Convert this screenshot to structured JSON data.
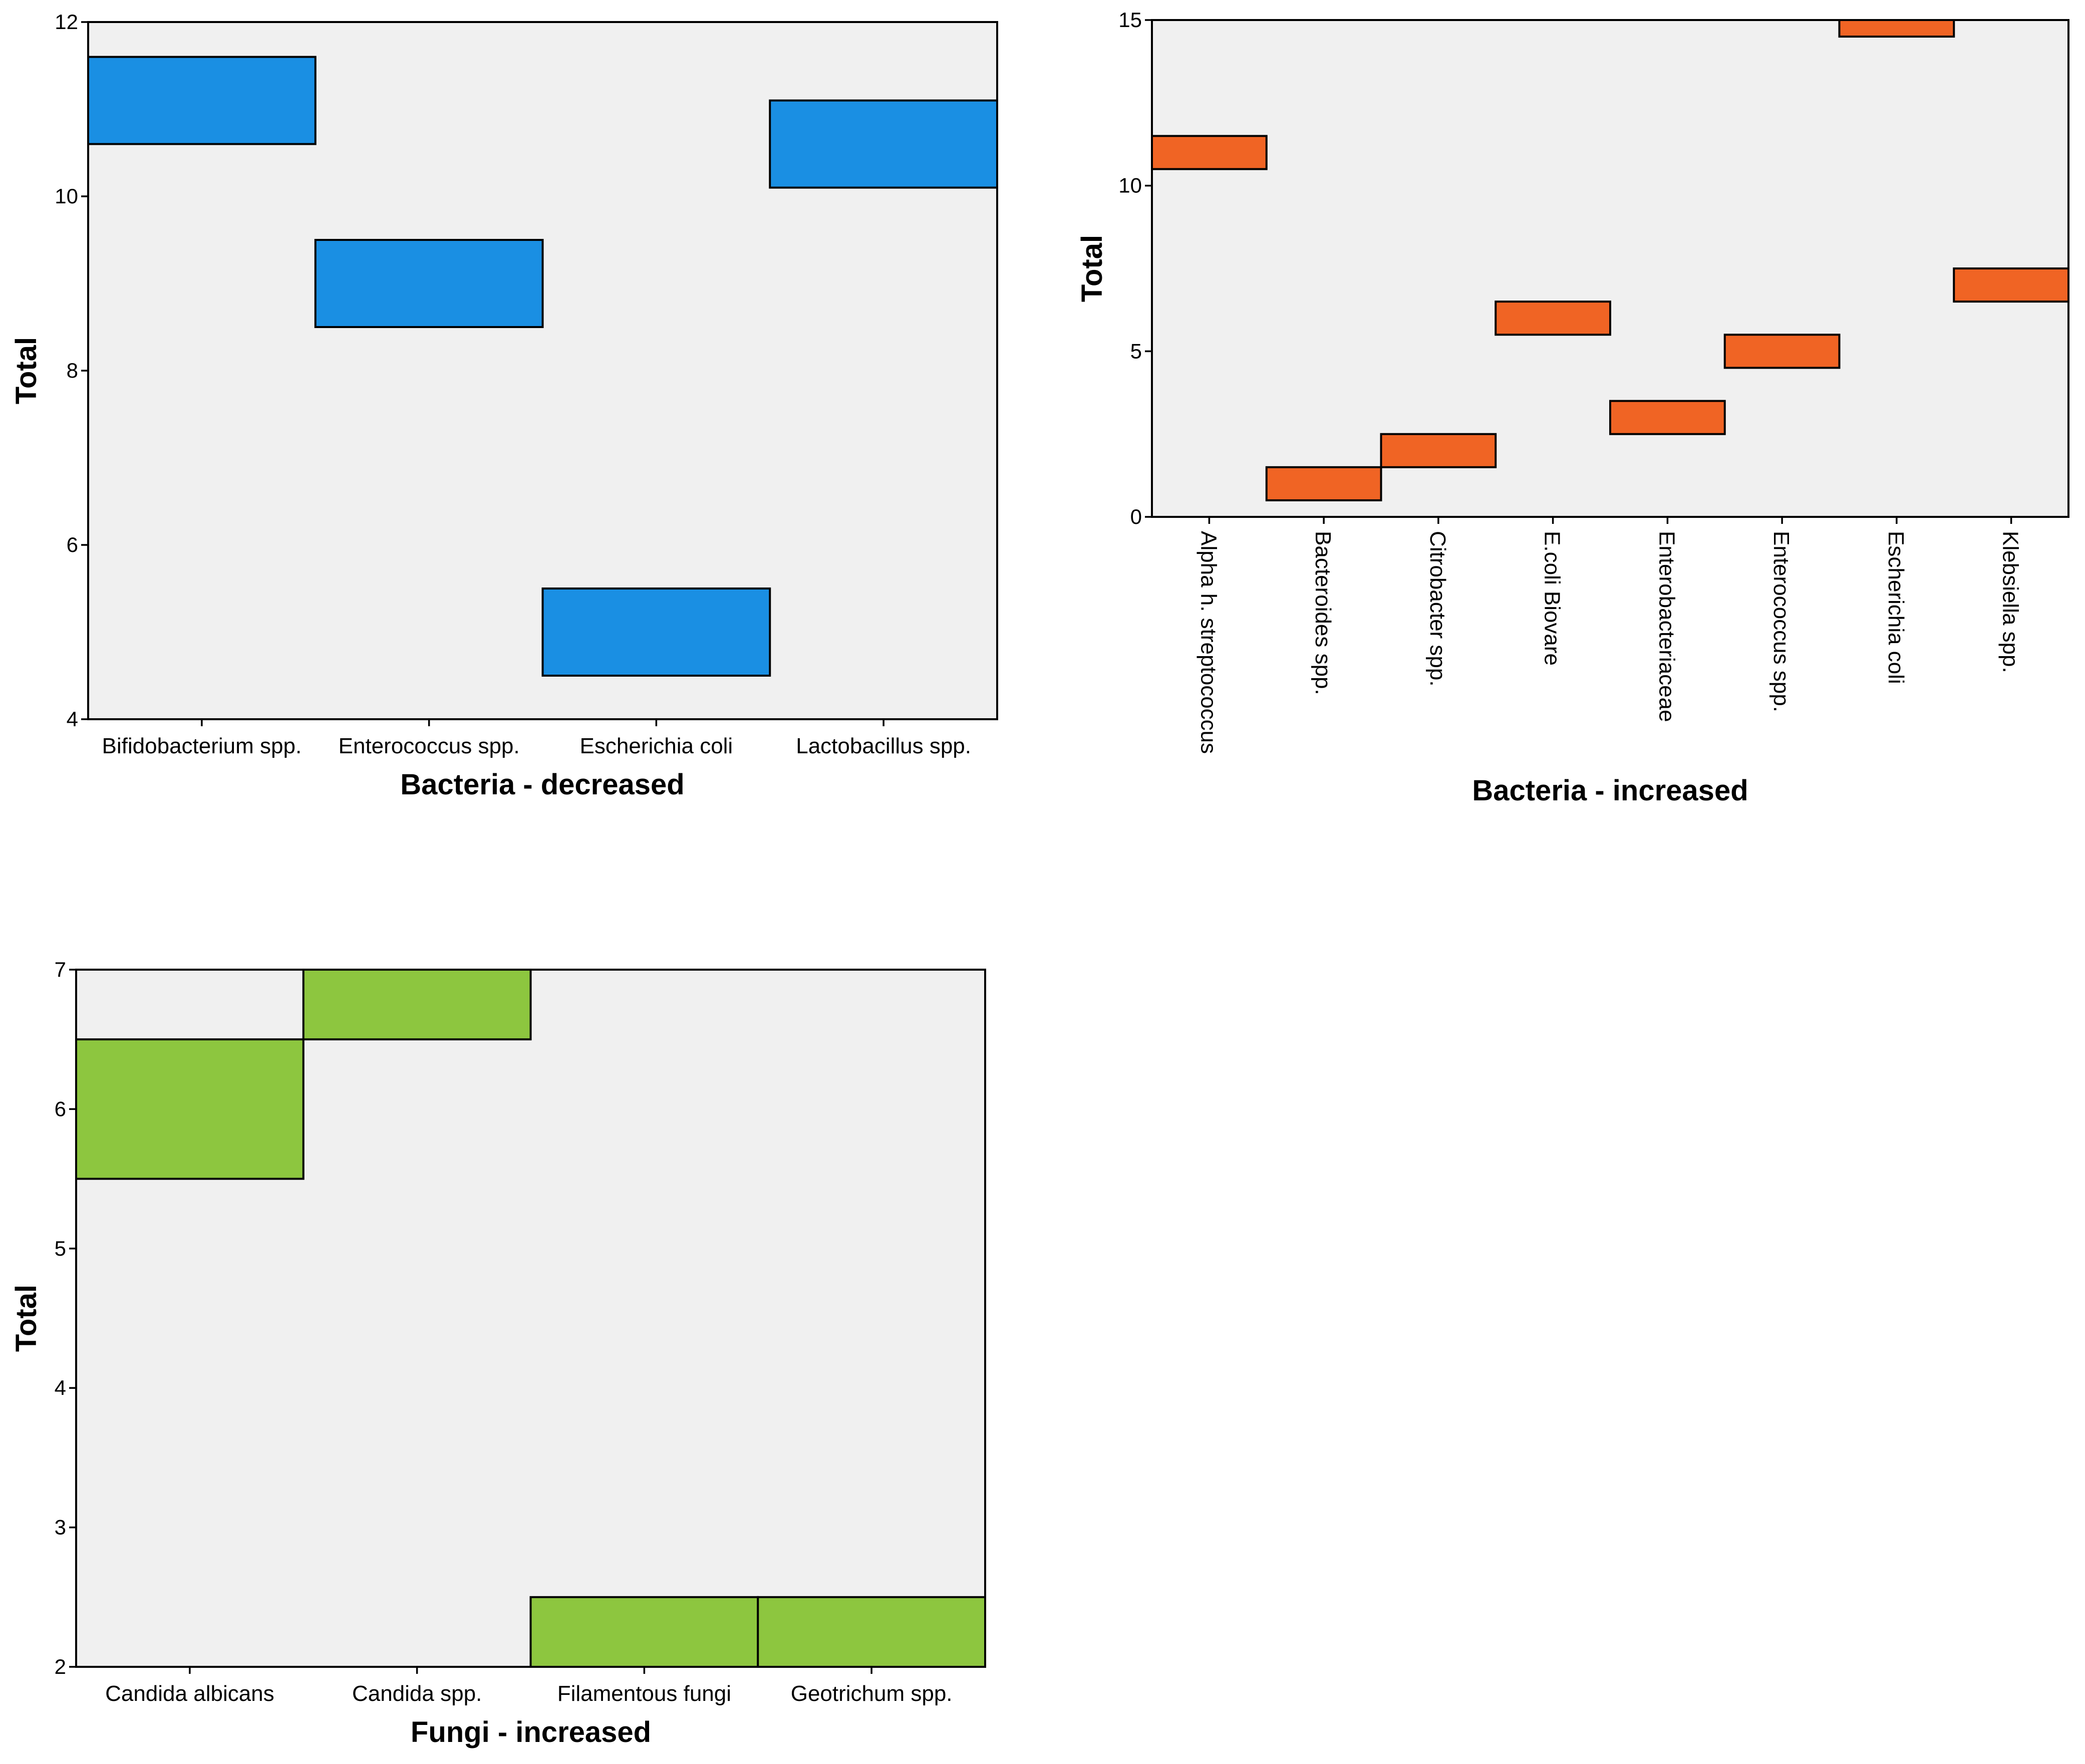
{
  "chart_data": [
    {
      "type": "bar",
      "xlabel": "Bacteria - decreased",
      "ylabel": "Total",
      "ylim": [
        4,
        12
      ],
      "yticks": [
        "4",
        "6",
        "8",
        "10",
        "12"
      ],
      "categories": [
        "Bifidobacterium spp.",
        "Enterococcus spp.",
        "Escherichia coli",
        "Lactobacillus spp."
      ],
      "values": [
        11.1,
        9.0,
        5.0,
        10.6
      ],
      "color": "#1a8fe3",
      "grid": false,
      "legend": "none"
    },
    {
      "type": "bar",
      "xlabel": "Bacteria - increased",
      "ylabel": "Total",
      "ylim": [
        0,
        15
      ],
      "yticks": [
        "0",
        "5",
        "10",
        "15"
      ],
      "categories": [
        "Alpha h. streptococcus",
        "Bacteroides spp.",
        "Citrobacter spp.",
        "E.coli Biovare",
        "Enterobacteriaceae",
        "Enterococcus spp.",
        "Escherichia coli",
        "Klebsiella spp."
      ],
      "values": [
        11,
        1,
        2,
        6,
        3,
        5,
        15,
        7
      ],
      "color": "#f06424",
      "grid": false,
      "legend": "none"
    },
    {
      "type": "bar",
      "xlabel": "Fungi - increased",
      "ylabel": "Total",
      "ylim": [
        2,
        7
      ],
      "yticks": [
        "2",
        "3",
        "4",
        "5",
        "6",
        "7"
      ],
      "categories": [
        "Candida albicans",
        "Candida spp.",
        "Filamentous fungi",
        "Geotrichum spp."
      ],
      "values": [
        6.0,
        7.0,
        2.0,
        2.0
      ],
      "color": "#8dc63f",
      "grid": false,
      "legend": "none"
    }
  ]
}
